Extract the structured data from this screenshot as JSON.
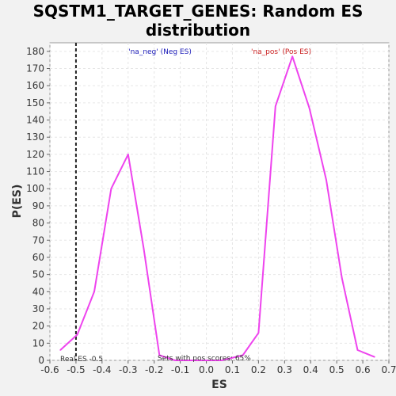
{
  "chart_data": {
    "type": "line",
    "title_line1": "SQSTM1_TARGET_GENES: Random ES",
    "title_line2": "distribution",
    "xlabel": "ES",
    "ylabel": "P(ES)",
    "xlim": [
      -0.6,
      0.7
    ],
    "ylim": [
      0,
      185
    ],
    "x_ticks": [
      "-0.6",
      "-0.5",
      "-0.4",
      "-0.3",
      "-0.2",
      "-0.1",
      "0.0",
      "0.1",
      "0.2",
      "0.3",
      "0.4",
      "0.5",
      "0.6",
      "0.7"
    ],
    "y_ticks": [
      "0",
      "10",
      "20",
      "30",
      "40",
      "50",
      "60",
      "70",
      "80",
      "90",
      "100",
      "110",
      "120",
      "130",
      "140",
      "150",
      "160",
      "170",
      "180"
    ],
    "grid": true,
    "series": [
      {
        "color": "#ee44ee",
        "x": [
          -0.56,
          -0.495,
          -0.43,
          -0.365,
          -0.3,
          -0.24,
          -0.18,
          -0.12,
          -0.06,
          0.0,
          0.06,
          0.14,
          0.2,
          0.265,
          0.33,
          0.395,
          0.46,
          0.52,
          0.58,
          0.645
        ],
        "y": [
          6,
          15,
          40,
          100,
          120,
          65,
          3,
          0,
          0,
          0,
          0,
          3,
          16,
          148,
          177,
          147,
          105,
          48,
          6,
          2
        ]
      }
    ],
    "real_es": -0.5,
    "legend": {
      "neg_label": "'na_neg' (Neg ES)",
      "neg_color": "#2222bb",
      "pos_label": "'na_pos' (Pos ES)",
      "pos_color": "#cc2222"
    },
    "annotations": {
      "real_es_text": "Real ES -0.5",
      "pos_scores_text": "Sets with pos scores: 65%"
    }
  }
}
